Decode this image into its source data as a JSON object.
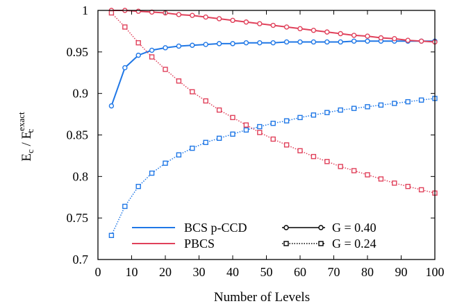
{
  "chart_data": {
    "type": "line",
    "xlabel": "Number of Levels",
    "ylabel_main": "E",
    "ylabel_sub": "c",
    "ylabel_sep": " / ",
    "ylabel_main2": "E",
    "ylabel_sub2": "c",
    "ylabel_sup2": "exact",
    "xlim": [
      0,
      100
    ],
    "ylim": [
      0.7,
      1.0
    ],
    "xticks": [
      0,
      10,
      20,
      30,
      40,
      50,
      60,
      70,
      80,
      90,
      100
    ],
    "xtick_labels": [
      "0",
      "10",
      "20",
      "30",
      "40",
      "50",
      "60",
      "70",
      "80",
      "90",
      "100"
    ],
    "yticks": [
      0.7,
      0.75,
      0.8,
      0.85,
      0.9,
      0.95,
      1.0
    ],
    "ytick_labels": [
      "0.7",
      "0.75",
      "0.8",
      "0.85",
      "0.9",
      "0.95",
      "1"
    ],
    "grid": false,
    "legend_placement": "bottom-center",
    "legend": [
      {
        "label": "BCS p-CCD",
        "kind": "method",
        "color": "#1f77e6"
      },
      {
        "label": "PBCS",
        "kind": "method",
        "color": "#e0405a"
      },
      {
        "label": "G = 0.40",
        "kind": "coupling",
        "style": "solid",
        "marker": "circle",
        "color": "#000000"
      },
      {
        "label": "G = 0.24",
        "kind": "coupling",
        "style": "dotted",
        "marker": "square",
        "color": "#000000"
      }
    ],
    "x": [
      4,
      8,
      12,
      16,
      20,
      24,
      28,
      32,
      36,
      40,
      44,
      48,
      52,
      56,
      60,
      64,
      68,
      72,
      76,
      80,
      84,
      88,
      92,
      96,
      100
    ],
    "series": [
      {
        "method": "BCS p-CCD",
        "coupling": "G = 0.40",
        "color": "#1f77e6",
        "style": "solid",
        "marker": "circle",
        "values": [
          0.885,
          0.931,
          0.946,
          0.952,
          0.955,
          0.957,
          0.958,
          0.959,
          0.96,
          0.96,
          0.961,
          0.961,
          0.961,
          0.962,
          0.962,
          0.962,
          0.962,
          0.962,
          0.963,
          0.963,
          0.963,
          0.963,
          0.963,
          0.963,
          0.963
        ]
      },
      {
        "method": "PBCS",
        "coupling": "G = 0.40",
        "color": "#e0405a",
        "style": "solid",
        "marker": "circle",
        "values": [
          1.0,
          1.0,
          0.999,
          0.998,
          0.997,
          0.995,
          0.994,
          0.992,
          0.99,
          0.988,
          0.986,
          0.984,
          0.982,
          0.98,
          0.978,
          0.976,
          0.974,
          0.972,
          0.97,
          0.969,
          0.967,
          0.966,
          0.964,
          0.963,
          0.962
        ]
      },
      {
        "method": "BCS p-CCD",
        "coupling": "G = 0.24",
        "color": "#1f77e6",
        "style": "dotted",
        "marker": "square",
        "values": [
          0.729,
          0.764,
          0.788,
          0.804,
          0.816,
          0.826,
          0.834,
          0.841,
          0.846,
          0.851,
          0.856,
          0.86,
          0.864,
          0.867,
          0.871,
          0.874,
          0.877,
          0.88,
          0.882,
          0.884,
          0.886,
          0.888,
          0.89,
          0.892,
          0.894
        ]
      },
      {
        "method": "PBCS",
        "coupling": "G = 0.24",
        "color": "#e0405a",
        "style": "dotted",
        "marker": "square",
        "values": [
          0.997,
          0.98,
          0.961,
          0.944,
          0.929,
          0.915,
          0.902,
          0.891,
          0.88,
          0.871,
          0.862,
          0.853,
          0.845,
          0.838,
          0.831,
          0.824,
          0.818,
          0.812,
          0.807,
          0.802,
          0.797,
          0.792,
          0.788,
          0.784,
          0.78
        ]
      }
    ]
  }
}
